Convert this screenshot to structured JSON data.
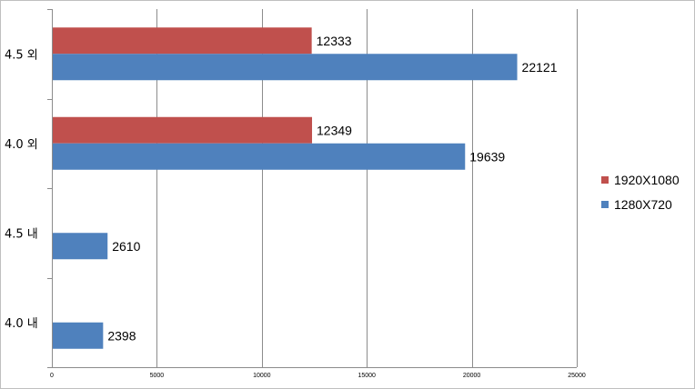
{
  "chart_data": {
    "type": "bar",
    "orientation": "horizontal",
    "categories": [
      "4.5 외",
      "4.0 외",
      "4.5 내",
      "4.0 내"
    ],
    "series": [
      {
        "name": "1920X1080",
        "color": "#c0504d",
        "values": [
          12333,
          12349,
          null,
          null
        ]
      },
      {
        "name": "1280X720",
        "color": "#4f81bd",
        "values": [
          22121,
          19639,
          2610,
          2398
        ]
      }
    ],
    "xlim": [
      0,
      25000
    ],
    "xticks": [
      0,
      5000,
      10000,
      15000,
      20000,
      25000
    ],
    "grid": true,
    "legend_position": "right"
  }
}
